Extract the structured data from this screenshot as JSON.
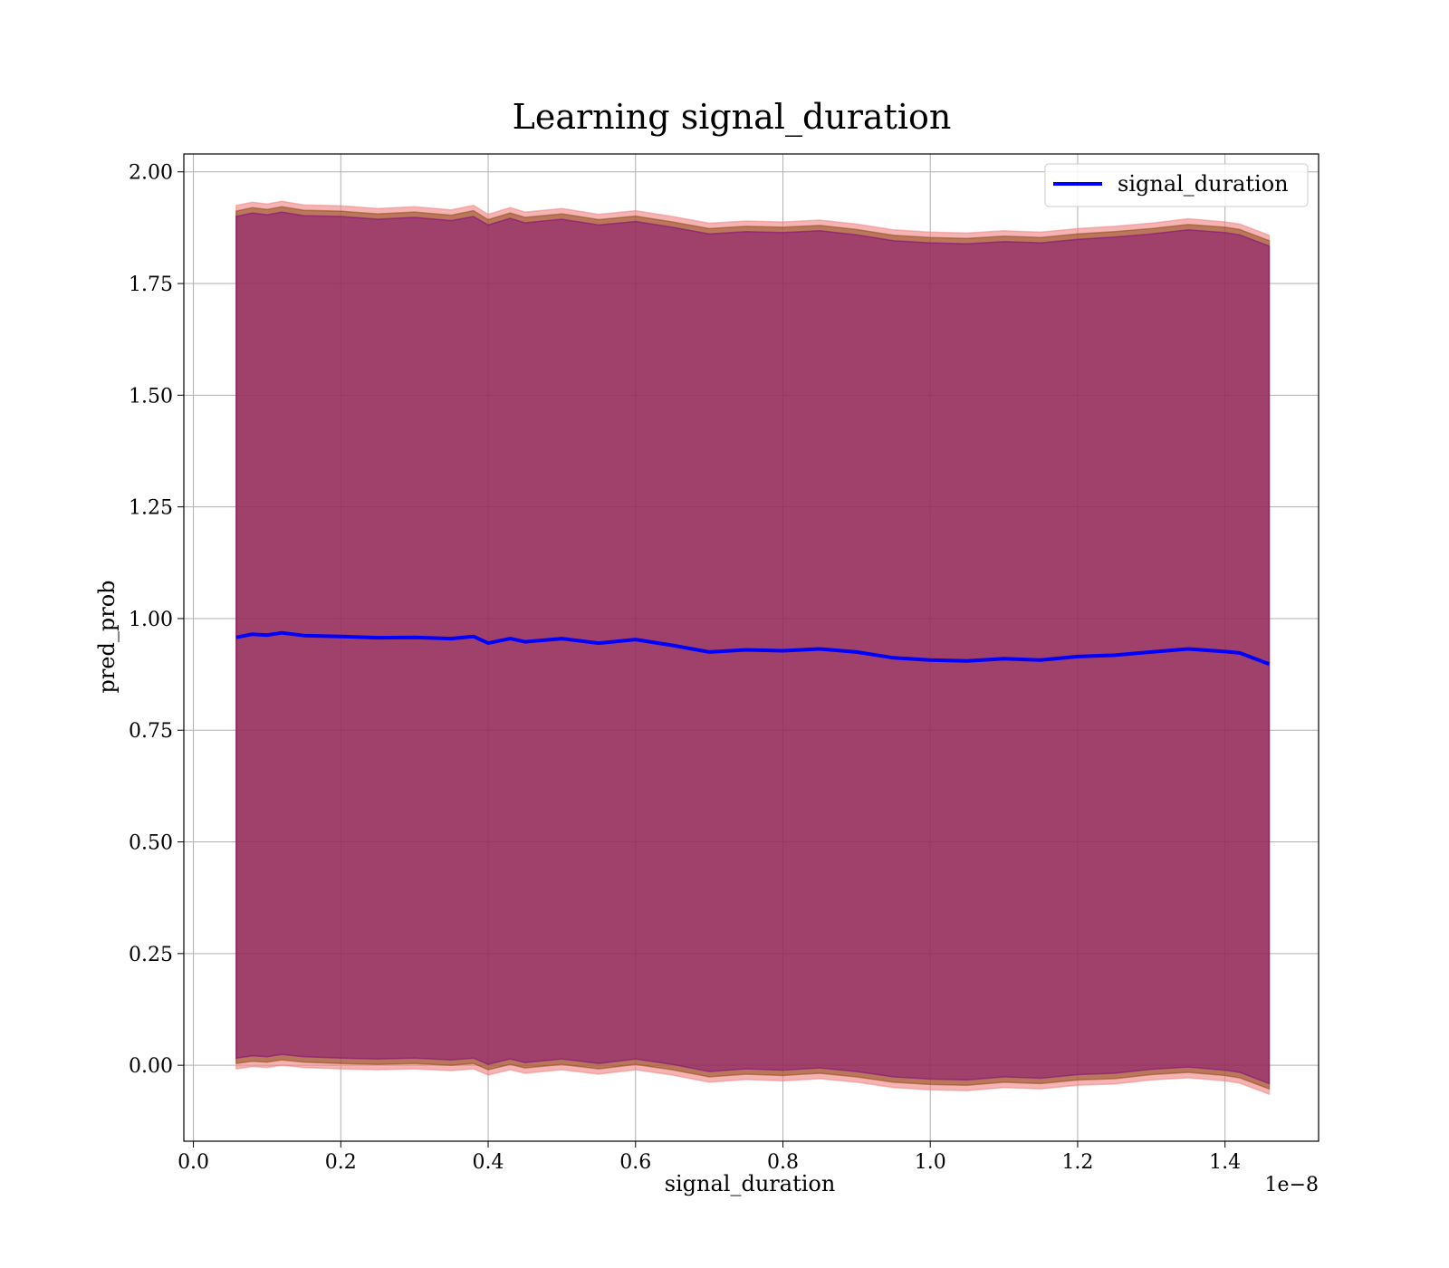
{
  "chart_data": {
    "type": "line",
    "title": "Learning signal_duration",
    "xlabel": "signal_duration",
    "ylabel": "pred_prob",
    "x_offset_label": "1e−8",
    "xlim": [
      -0.013,
      1.527
    ],
    "ylim": [
      -0.17,
      2.04
    ],
    "grid": true,
    "legend_position": "top-right",
    "xticks": [
      0.0,
      0.2,
      0.4,
      0.6,
      0.8,
      1.0,
      1.2,
      1.4
    ],
    "xtick_labels": [
      "0.0",
      "0.2",
      "0.4",
      "0.6",
      "0.8",
      "1.0",
      "1.2",
      "1.4"
    ],
    "yticks": [
      0.0,
      0.25,
      0.5,
      0.75,
      1.0,
      1.25,
      1.5,
      1.75,
      2.0
    ],
    "ytick_labels": [
      "0.00",
      "0.25",
      "0.50",
      "0.75",
      "1.00",
      "1.25",
      "1.50",
      "1.75",
      "2.00"
    ],
    "x": [
      0.058,
      0.08,
      0.1,
      0.12,
      0.15,
      0.2,
      0.25,
      0.3,
      0.35,
      0.38,
      0.4,
      0.43,
      0.45,
      0.5,
      0.55,
      0.6,
      0.65,
      0.7,
      0.75,
      0.8,
      0.85,
      0.9,
      0.95,
      1.0,
      1.05,
      1.1,
      1.15,
      1.2,
      1.25,
      1.3,
      1.35,
      1.4,
      1.42,
      1.46
    ],
    "series": [
      {
        "name": "signal_duration",
        "color": "#0000ff",
        "values": [
          0.958,
          0.965,
          0.963,
          0.968,
          0.962,
          0.96,
          0.957,
          0.958,
          0.955,
          0.96,
          0.945,
          0.955,
          0.948,
          0.955,
          0.945,
          0.953,
          0.94,
          0.925,
          0.93,
          0.928,
          0.932,
          0.925,
          0.912,
          0.907,
          0.905,
          0.91,
          0.907,
          0.915,
          0.918,
          0.925,
          0.932,
          0.926,
          0.923,
          0.898
        ]
      }
    ],
    "bands": [
      {
        "fill": "#f08080",
        "opacity": 0.6,
        "upper": [
          1.925,
          1.932,
          1.928,
          1.934,
          1.926,
          1.924,
          1.918,
          1.922,
          1.915,
          1.925,
          1.905,
          1.92,
          1.91,
          1.918,
          1.905,
          1.913,
          1.9,
          1.885,
          1.89,
          1.888,
          1.892,
          1.883,
          1.87,
          1.865,
          1.863,
          1.868,
          1.865,
          1.873,
          1.878,
          1.885,
          1.895,
          1.888,
          1.883,
          1.858
        ],
        "lower": [
          -0.008,
          -0.003,
          -0.005,
          0.0,
          -0.005,
          -0.008,
          -0.01,
          -0.008,
          -0.012,
          -0.008,
          -0.022,
          -0.01,
          -0.018,
          -0.01,
          -0.02,
          -0.01,
          -0.022,
          -0.038,
          -0.032,
          -0.035,
          -0.03,
          -0.038,
          -0.05,
          -0.055,
          -0.057,
          -0.05,
          -0.053,
          -0.045,
          -0.042,
          -0.033,
          -0.028,
          -0.035,
          -0.04,
          -0.065
        ]
      },
      {
        "fill": "#8b4513",
        "opacity": 0.55,
        "upper": [
          1.912,
          1.92,
          1.916,
          1.922,
          1.914,
          1.912,
          1.906,
          1.91,
          1.903,
          1.913,
          1.893,
          1.908,
          1.898,
          1.906,
          1.893,
          1.901,
          1.888,
          1.873,
          1.878,
          1.876,
          1.88,
          1.871,
          1.858,
          1.853,
          1.851,
          1.856,
          1.853,
          1.861,
          1.866,
          1.873,
          1.882,
          1.876,
          1.871,
          1.846
        ],
        "lower": [
          0.004,
          0.009,
          0.007,
          0.012,
          0.007,
          0.004,
          0.002,
          0.004,
          0.0,
          0.004,
          -0.01,
          0.002,
          -0.006,
          0.002,
          -0.008,
          0.002,
          -0.01,
          -0.026,
          -0.02,
          -0.023,
          -0.018,
          -0.026,
          -0.038,
          -0.043,
          -0.045,
          -0.038,
          -0.041,
          -0.033,
          -0.03,
          -0.021,
          -0.016,
          -0.023,
          -0.028,
          -0.053
        ]
      },
      {
        "fill": "#800080",
        "opacity": 0.45,
        "upper": [
          1.9,
          1.908,
          1.904,
          1.91,
          1.902,
          1.9,
          1.894,
          1.898,
          1.891,
          1.9,
          1.881,
          1.896,
          1.886,
          1.894,
          1.881,
          1.889,
          1.876,
          1.861,
          1.866,
          1.864,
          1.868,
          1.859,
          1.846,
          1.841,
          1.839,
          1.844,
          1.841,
          1.849,
          1.854,
          1.861,
          1.87,
          1.864,
          1.859,
          1.834
        ],
        "lower": [
          0.016,
          0.021,
          0.019,
          0.024,
          0.019,
          0.016,
          0.014,
          0.016,
          0.012,
          0.016,
          0.002,
          0.014,
          0.006,
          0.014,
          0.004,
          0.014,
          0.002,
          -0.014,
          -0.008,
          -0.011,
          -0.006,
          -0.014,
          -0.026,
          -0.031,
          -0.033,
          -0.026,
          -0.029,
          -0.021,
          -0.018,
          -0.009,
          -0.004,
          -0.011,
          -0.016,
          -0.041
        ]
      }
    ]
  }
}
